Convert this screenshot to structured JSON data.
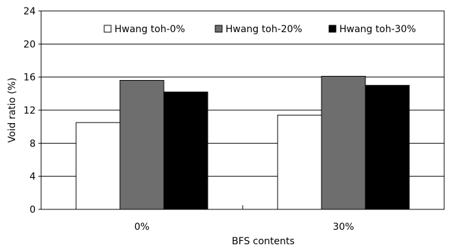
{
  "chart_data": {
    "type": "bar",
    "title": "",
    "xlabel": "BFS contents",
    "ylabel": "Void ratio (%)",
    "ylim": [
      0,
      24
    ],
    "yticks": [
      0,
      4,
      8,
      12,
      16,
      20,
      24
    ],
    "grid": true,
    "legend_position": "top-right",
    "categories": [
      "0%",
      "30%"
    ],
    "series": [
      {
        "name": "Hwang toh-0%",
        "values": [
          10.5,
          11.4
        ],
        "color": "#ffffff"
      },
      {
        "name": "Hwang toh-20%",
        "values": [
          15.6,
          16.1
        ],
        "color": "#6e6e6e"
      },
      {
        "name": "Hwang toh-30%",
        "values": [
          14.2,
          15.0
        ],
        "color": "#000000"
      }
    ]
  }
}
